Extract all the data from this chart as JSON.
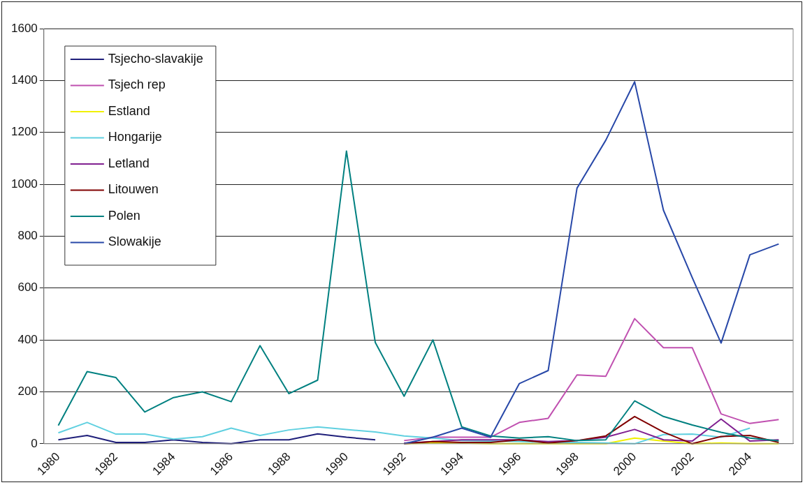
{
  "chart_data": {
    "type": "line",
    "categories": [
      "1980",
      null,
      "1982",
      null,
      "1984",
      null,
      "1986",
      null,
      "1988",
      null,
      "1990",
      null,
      "1992",
      null,
      "1994",
      null,
      "1996",
      null,
      "1998",
      null,
      "2000",
      null,
      "2002",
      null,
      "2004",
      null
    ],
    "ylim": [
      0,
      1600
    ],
    "yticks": [
      0,
      200,
      400,
      600,
      800,
      1000,
      1200,
      1400,
      1600
    ],
    "grid": "y",
    "legend": "top left",
    "marker": "none",
    "line_style": "solid",
    "series": [
      {
        "name": "Tsjecho-slavakije",
        "color": "#1f1f7a",
        "values": [
          15,
          32,
          5,
          5,
          15,
          5,
          0,
          15,
          15,
          38,
          25,
          15,
          null,
          null,
          null,
          null,
          null,
          null,
          null,
          null,
          null,
          null,
          null,
          null,
          null,
          null
        ]
      },
      {
        "name": "Tsjech rep",
        "color": "#c050b0",
        "values": [
          null,
          null,
          null,
          null,
          null,
          null,
          null,
          null,
          null,
          null,
          null,
          null,
          12,
          25,
          25,
          25,
          82,
          98,
          265,
          260,
          482,
          370,
          370,
          115,
          78,
          93
        ]
      },
      {
        "name": "Estland",
        "color": "#f0f000",
        "values": [
          null,
          null,
          null,
          null,
          null,
          null,
          null,
          null,
          null,
          null,
          null,
          null,
          0,
          3,
          3,
          0,
          0,
          0,
          0,
          0,
          22,
          10,
          0,
          3,
          0,
          0
        ]
      },
      {
        "name": "Hongarije",
        "color": "#60d0e0",
        "values": [
          42,
          82,
          37,
          37,
          18,
          27,
          60,
          32,
          53,
          65,
          55,
          45,
          30,
          22,
          12,
          10,
          8,
          5,
          5,
          3,
          0,
          35,
          37,
          25,
          60,
          null
        ]
      },
      {
        "name": "Letland",
        "color": "#802090",
        "values": [
          null,
          null,
          null,
          null,
          null,
          null,
          null,
          null,
          null,
          null,
          null,
          null,
          2,
          8,
          15,
          15,
          15,
          8,
          12,
          25,
          55,
          15,
          10,
          95,
          10,
          15
        ]
      },
      {
        "name": "Litouwen",
        "color": "#800000",
        "values": [
          null,
          null,
          null,
          null,
          null,
          null,
          null,
          null,
          null,
          null,
          null,
          null,
          0,
          8,
          5,
          5,
          15,
          3,
          12,
          30,
          105,
          45,
          0,
          28,
          32,
          5
        ]
      },
      {
        "name": "Polen",
        "color": "#008080",
        "values": [
          70,
          278,
          255,
          122,
          178,
          200,
          162,
          378,
          193,
          245,
          1128,
          390,
          183,
          400,
          65,
          30,
          22,
          27,
          12,
          15,
          165,
          105,
          72,
          44,
          22,
          11
        ]
      },
      {
        "name": "Slowakije",
        "color": "#2848a8",
        "values": [
          null,
          null,
          null,
          null,
          null,
          null,
          null,
          null,
          null,
          null,
          null,
          null,
          0,
          25,
          60,
          25,
          232,
          282,
          985,
          1170,
          1395,
          900,
          640,
          388,
          728,
          770
        ]
      }
    ]
  }
}
